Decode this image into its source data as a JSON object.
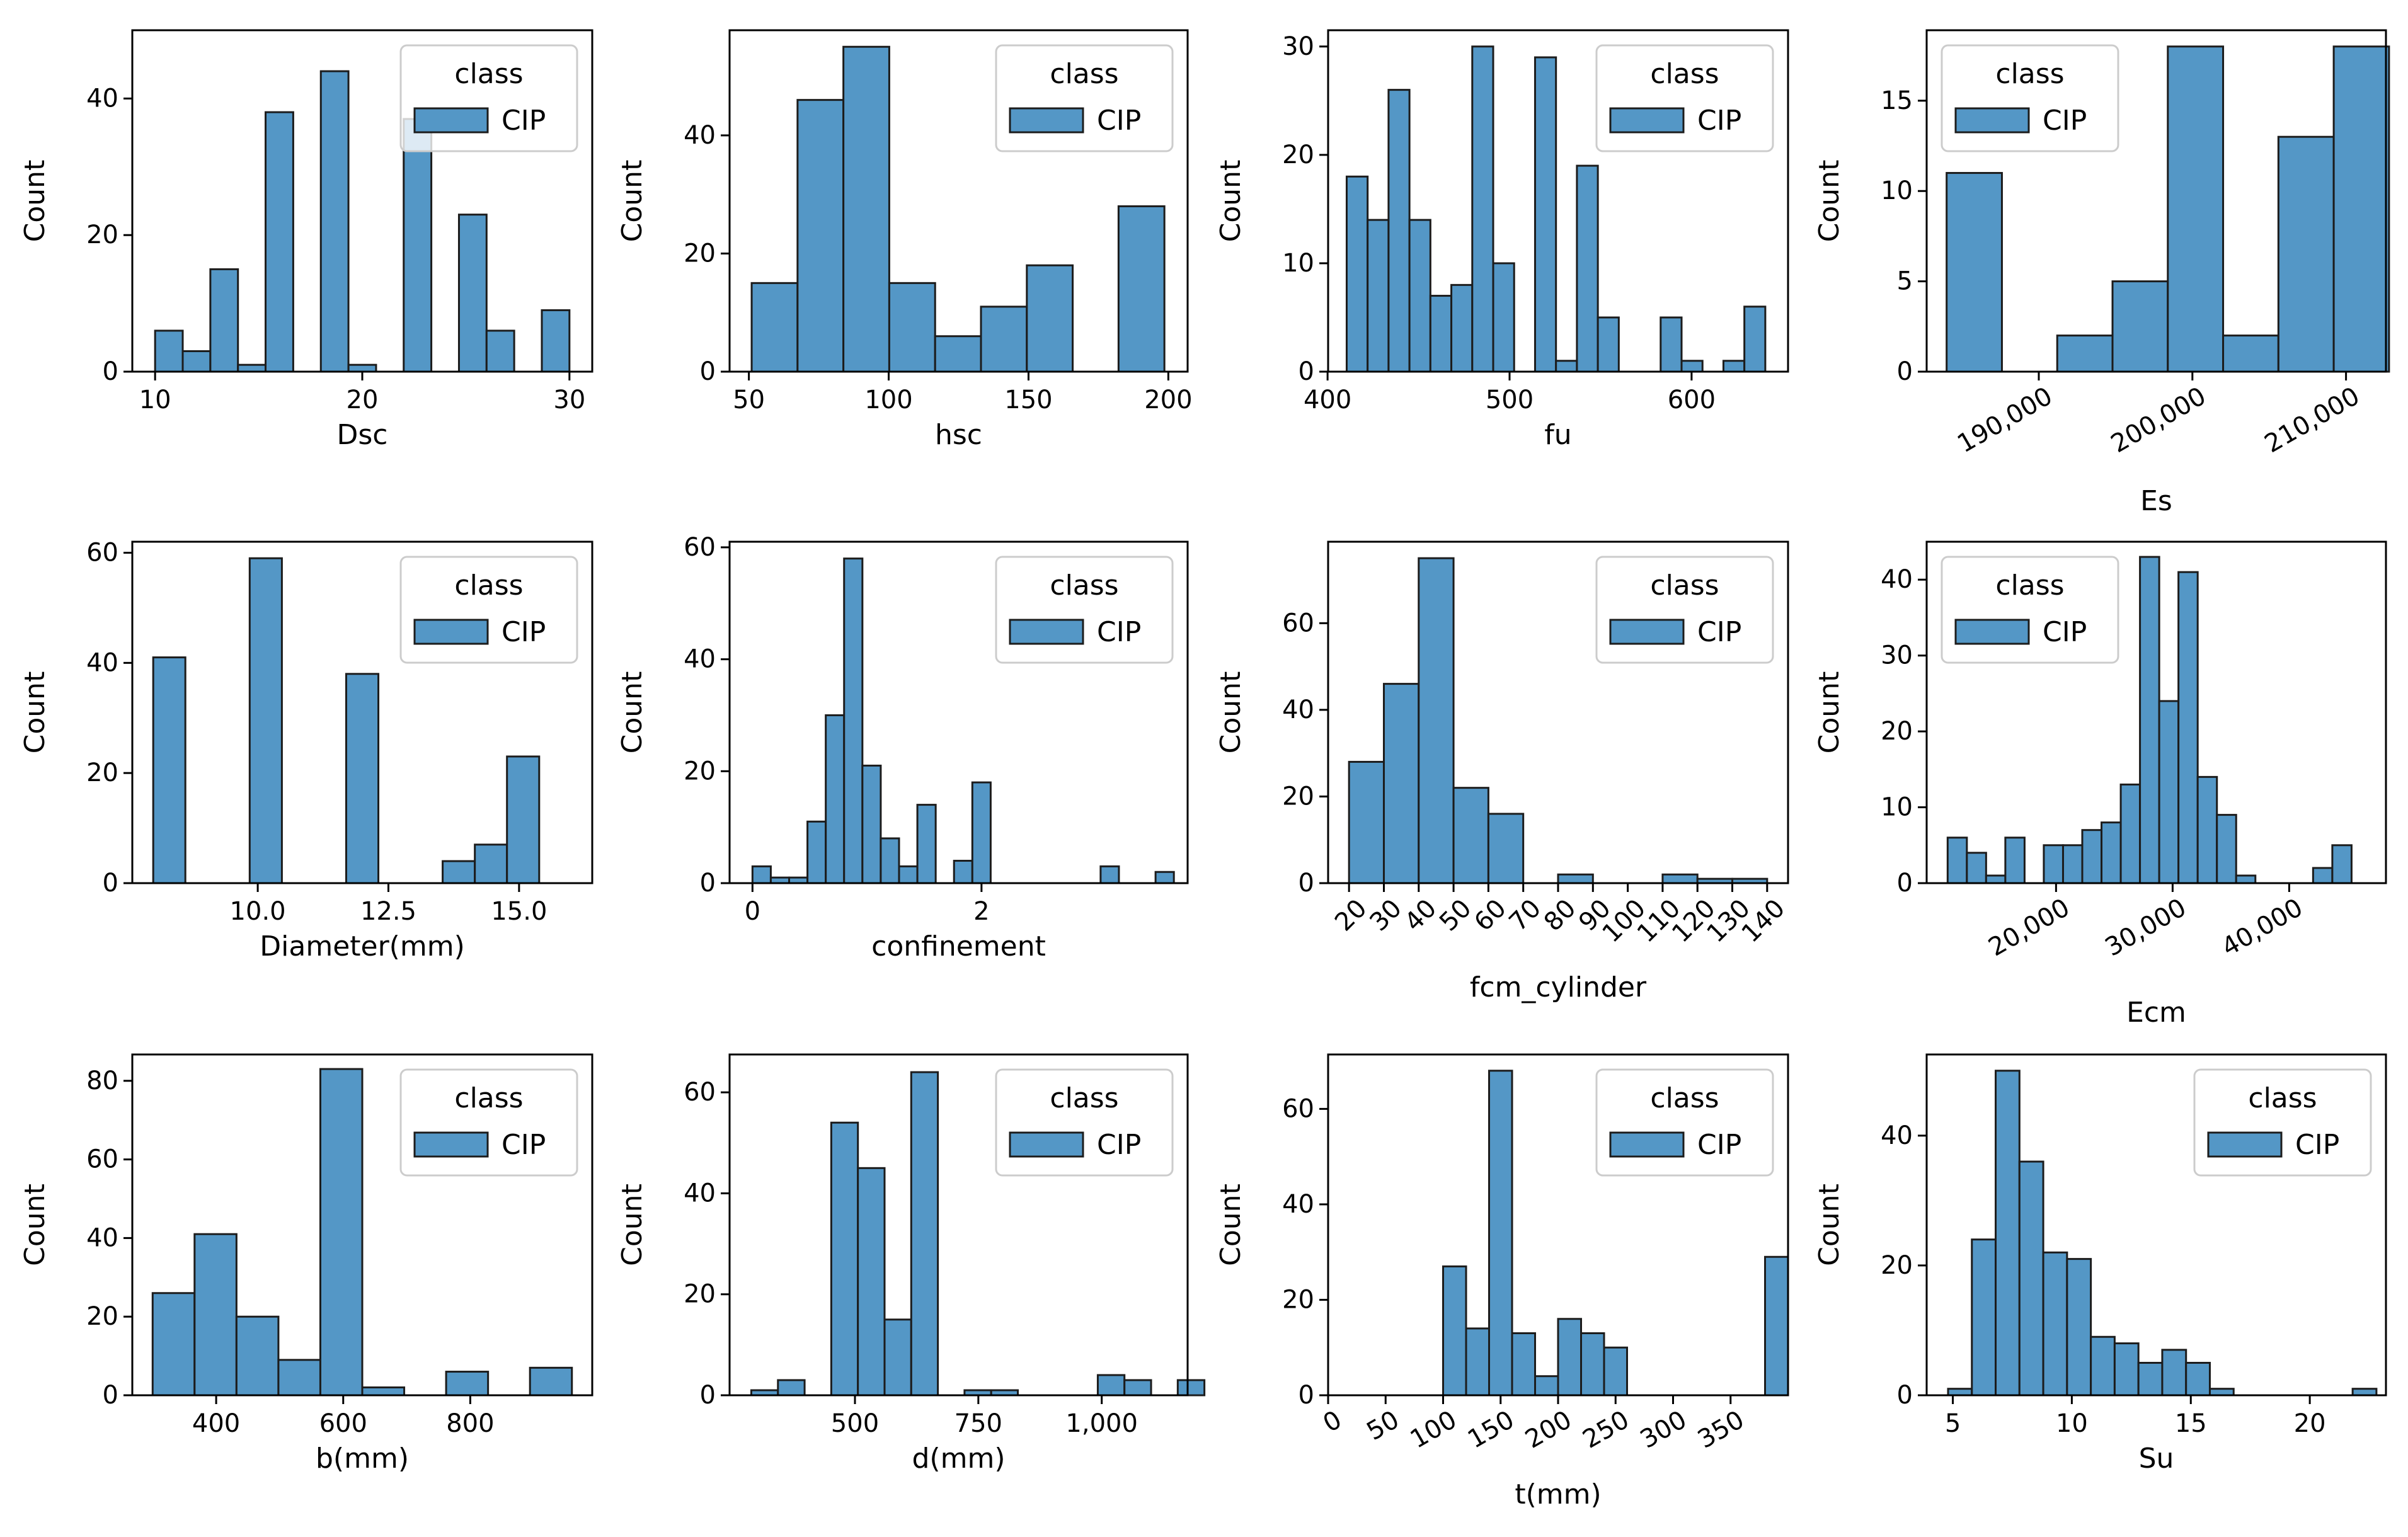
{
  "style": {
    "bar_fill": "#5497c6",
    "bar_edge": "#1c1c1c"
  },
  "chart_data": [
    {
      "type": "bar",
      "xlabel": "Dsc",
      "ylabel": "Count",
      "xlim": [
        8.9,
        31.1
      ],
      "ylim": [
        0,
        50
      ],
      "xticks": [
        10,
        20,
        30
      ],
      "xtick_labels": [
        "10",
        "20",
        "30"
      ],
      "xtick_rot": 0,
      "yticks": [
        0,
        20,
        40
      ],
      "ytick_labels": [
        "0",
        "20",
        "40"
      ],
      "legend": {
        "title": "class",
        "label": "CIP",
        "position": "top-right"
      },
      "bars": [
        [
          10.0,
          11.333,
          6
        ],
        [
          11.333,
          12.667,
          3
        ],
        [
          12.667,
          14.0,
          15
        ],
        [
          14.0,
          15.333,
          1
        ],
        [
          15.333,
          16.667,
          38
        ],
        [
          18.0,
          19.333,
          44
        ],
        [
          19.333,
          20.667,
          1
        ],
        [
          22.0,
          23.333,
          37
        ],
        [
          24.667,
          26.0,
          23
        ],
        [
          26.0,
          27.333,
          6
        ],
        [
          28.667,
          30.0,
          9
        ]
      ]
    },
    {
      "type": "bar",
      "xlabel": "hsc",
      "ylabel": "Count",
      "xlim": [
        43.1,
        206.9
      ],
      "ylim": [
        0,
        57.8
      ],
      "xticks": [
        50,
        100,
        150,
        200
      ],
      "xtick_labels": [
        "50",
        "100",
        "150",
        "200"
      ],
      "xtick_rot": 0,
      "yticks": [
        0,
        20,
        40
      ],
      "ytick_labels": [
        "0",
        "20",
        "40"
      ],
      "legend": {
        "title": "class",
        "label": "CIP",
        "position": "top-right"
      },
      "bars": [
        [
          51.0,
          67.4,
          15
        ],
        [
          67.4,
          83.8,
          46
        ],
        [
          83.8,
          100.2,
          55
        ],
        [
          100.2,
          116.6,
          15
        ],
        [
          116.6,
          133.0,
          6
        ],
        [
          133.0,
          149.4,
          11
        ],
        [
          149.4,
          165.8,
          18
        ],
        [
          182.2,
          198.6,
          28
        ]
      ]
    },
    {
      "type": "bar",
      "xlabel": "fu",
      "ylabel": "Count",
      "xlim": [
        400.3,
        653
      ],
      "ylim": [
        0,
        31.5
      ],
      "xticks": [
        400,
        500,
        600
      ],
      "xtick_labels": [
        "400",
        "500",
        "600"
      ],
      "xtick_rot": 0,
      "yticks": [
        0,
        10,
        20,
        30
      ],
      "ytick_labels": [
        "0",
        "10",
        "20",
        "30"
      ],
      "legend": {
        "title": "class",
        "label": "CIP",
        "position": "top-right"
      },
      "bars": [
        [
          410.5,
          422.0,
          18
        ],
        [
          422.0,
          433.5,
          14
        ],
        [
          433.5,
          445.0,
          26
        ],
        [
          445.0,
          456.5,
          14
        ],
        [
          456.5,
          468.0,
          7
        ],
        [
          468.0,
          479.5,
          8
        ],
        [
          479.5,
          491.0,
          30
        ],
        [
          491.0,
          502.5,
          10
        ],
        [
          514.0,
          525.5,
          29
        ],
        [
          525.5,
          537.0,
          1
        ],
        [
          537.0,
          548.5,
          19
        ],
        [
          548.5,
          560.0,
          5
        ],
        [
          583.0,
          594.5,
          5
        ],
        [
          594.5,
          606.0,
          1
        ],
        [
          617.5,
          629.0,
          1
        ],
        [
          629.0,
          640.5,
          6
        ]
      ]
    },
    {
      "type": "bar",
      "xlabel": "Es",
      "ylabel": "Count",
      "xlim": [
        182700,
        212600
      ],
      "ylim": [
        0,
        18.9
      ],
      "xticks": [
        190000,
        200000,
        210000
      ],
      "xtick_labels": [
        "190,000",
        "200,000",
        "210,000"
      ],
      "xtick_rot": -30,
      "yticks": [
        0,
        5,
        10,
        15
      ],
      "ytick_labels": [
        "0",
        "5",
        "10",
        "15"
      ],
      "legend": {
        "title": "class",
        "label": "CIP",
        "position": "top-left"
      },
      "bars": [
        [
          184000,
          187600,
          11
        ],
        [
          191200,
          194800,
          2
        ],
        [
          194800,
          198400,
          5
        ],
        [
          198400,
          202000,
          18
        ],
        [
          202000,
          205600,
          2
        ],
        [
          205600,
          209200,
          13
        ],
        [
          209200,
          212800,
          18
        ]
      ]
    },
    {
      "type": "bar",
      "xlabel": "Diameter(mm)",
      "ylabel": "Count",
      "xlim": [
        7.6,
        16.4
      ],
      "ylim": [
        0,
        62
      ],
      "xticks": [
        10,
        12.5,
        15
      ],
      "xtick_labels": [
        "10.0",
        "12.5",
        "15.0"
      ],
      "xtick_rot": 0,
      "yticks": [
        0,
        20,
        40,
        60
      ],
      "ytick_labels": [
        "0",
        "20",
        "40",
        "60"
      ],
      "legend": {
        "title": "class",
        "label": "CIP",
        "position": "top-right"
      },
      "bars": [
        [
          8.0,
          8.615,
          41
        ],
        [
          9.846,
          10.462,
          59
        ],
        [
          11.692,
          12.308,
          38
        ],
        [
          13.538,
          14.154,
          4
        ],
        [
          14.154,
          14.769,
          7
        ],
        [
          14.769,
          15.385,
          23
        ]
      ]
    },
    {
      "type": "bar",
      "xlabel": "confinement",
      "ylabel": "Count",
      "xlim": [
        -0.2,
        3.8
      ],
      "ylim": [
        0,
        61
      ],
      "xticks": [
        0,
        2
      ],
      "xtick_labels": [
        "0",
        "2"
      ],
      "xtick_rot": 0,
      "yticks": [
        0,
        20,
        40,
        60
      ],
      "ytick_labels": [
        "0",
        "20",
        "40",
        "60"
      ],
      "legend": {
        "title": "class",
        "label": "CIP",
        "position": "top-right"
      },
      "bars": [
        [
          0.0,
          0.16,
          3
        ],
        [
          0.16,
          0.32,
          1
        ],
        [
          0.32,
          0.48,
          1
        ],
        [
          0.48,
          0.64,
          11
        ],
        [
          0.64,
          0.8,
          30
        ],
        [
          0.8,
          0.96,
          58
        ],
        [
          0.96,
          1.12,
          21
        ],
        [
          1.12,
          1.28,
          8
        ],
        [
          1.28,
          1.44,
          3
        ],
        [
          1.44,
          1.6,
          14
        ],
        [
          1.76,
          1.92,
          4
        ],
        [
          1.92,
          2.08,
          18
        ],
        [
          3.04,
          3.2,
          3
        ],
        [
          3.52,
          3.68,
          2
        ]
      ]
    },
    {
      "type": "bar",
      "xlabel": "fcm_cylinder",
      "ylabel": "Count",
      "xlim": [
        14,
        146
      ],
      "ylim": [
        0,
        78.8
      ],
      "xticks": [
        20,
        30,
        40,
        50,
        60,
        70,
        80,
        90,
        100,
        110,
        120,
        130,
        140
      ],
      "xtick_labels": [
        "20",
        "30",
        "40",
        "50",
        "60",
        "70",
        "80",
        "90",
        "100",
        "110",
        "120",
        "130",
        "140"
      ],
      "xtick_rot": -45,
      "yticks": [
        0,
        20,
        40,
        60
      ],
      "ytick_labels": [
        "0",
        "20",
        "40",
        "60"
      ],
      "legend": {
        "title": "class",
        "label": "CIP",
        "position": "top-right"
      },
      "bars": [
        [
          20,
          30,
          28
        ],
        [
          30,
          40,
          46
        ],
        [
          40,
          50,
          75
        ],
        [
          50,
          60,
          22
        ],
        [
          60,
          70,
          16
        ],
        [
          80,
          90,
          2
        ],
        [
          110,
          120,
          2
        ],
        [
          120,
          130,
          1
        ],
        [
          130,
          140,
          1
        ]
      ]
    },
    {
      "type": "bar",
      "xlabel": "Ecm",
      "ylabel": "Count",
      "xlim": [
        8900,
        48300
      ],
      "ylim": [
        0,
        45
      ],
      "xticks": [
        20000,
        30000,
        40000
      ],
      "xtick_labels": [
        "20,000",
        "30,000",
        "40,000"
      ],
      "xtick_rot": -30,
      "yticks": [
        0,
        10,
        20,
        30,
        40
      ],
      "ytick_labels": [
        "0",
        "10",
        "20",
        "30",
        "40"
      ],
      "legend": {
        "title": "class",
        "label": "CIP",
        "position": "top-left"
      },
      "bars": [
        [
          10700,
          12350,
          6
        ],
        [
          12350,
          14000,
          4
        ],
        [
          14000,
          15650,
          1
        ],
        [
          15650,
          17300,
          6
        ],
        [
          18950,
          20600,
          5
        ],
        [
          20600,
          22250,
          5
        ],
        [
          22250,
          23900,
          7
        ],
        [
          23900,
          25550,
          8
        ],
        [
          25550,
          27200,
          13
        ],
        [
          27200,
          28850,
          43
        ],
        [
          28850,
          30500,
          24
        ],
        [
          30500,
          32150,
          41
        ],
        [
          32150,
          33800,
          14
        ],
        [
          33800,
          35450,
          9
        ],
        [
          35450,
          37100,
          1
        ],
        [
          42050,
          43700,
          2
        ],
        [
          43700,
          45350,
          5
        ]
      ]
    },
    {
      "type": "bar",
      "xlabel": "b(mm)",
      "ylabel": "Count",
      "xlim": [
        268,
        992
      ],
      "ylim": [
        0,
        86.7
      ],
      "xticks": [
        400,
        600,
        800
      ],
      "xtick_labels": [
        "400",
        "600",
        "800"
      ],
      "xtick_rot": 0,
      "yticks": [
        0,
        20,
        40,
        60,
        80
      ],
      "ytick_labels": [
        "0",
        "20",
        "40",
        "60",
        "80"
      ],
      "legend": {
        "title": "class",
        "label": "CIP",
        "position": "top-right"
      },
      "bars": [
        [
          300,
          366,
          26
        ],
        [
          366,
          432,
          41
        ],
        [
          432,
          498,
          20
        ],
        [
          498,
          564,
          9
        ],
        [
          564,
          630,
          83
        ],
        [
          630,
          696,
          2
        ],
        [
          762,
          828,
          6
        ],
        [
          894,
          960,
          7
        ]
      ]
    },
    {
      "type": "bar",
      "xlabel": "d(mm)",
      "ylabel": "Count",
      "xlim": [
        246,
        1174
      ],
      "ylim": [
        0,
        67.5
      ],
      "xticks": [
        500,
        750,
        1000
      ],
      "xtick_labels": [
        "500",
        "750",
        "1,000"
      ],
      "xtick_rot": 0,
      "yticks": [
        0,
        20,
        40,
        60
      ],
      "ytick_labels": [
        "0",
        "20",
        "40",
        "60"
      ],
      "legend": {
        "title": "class",
        "label": "CIP",
        "position": "top-right"
      },
      "bars": [
        [
          290,
          344,
          1
        ],
        [
          344,
          398,
          3
        ],
        [
          452,
          506,
          54
        ],
        [
          506,
          560,
          45
        ],
        [
          560,
          614,
          15
        ],
        [
          614,
          668,
          64
        ],
        [
          722,
          776,
          1
        ],
        [
          776,
          830,
          1
        ],
        [
          992,
          1046,
          4
        ],
        [
          1046,
          1100,
          3
        ],
        [
          1154,
          1208,
          3
        ]
      ]
    },
    {
      "type": "bar",
      "xlabel": "t(mm)",
      "ylabel": "Count",
      "xlim": [
        0,
        400
      ],
      "ylim": [
        0,
        71.4
      ],
      "xticks": [
        0,
        50,
        100,
        150,
        200,
        250,
        300,
        350
      ],
      "xtick_labels": [
        "0",
        "50",
        "100",
        "150",
        "200",
        "250",
        "300",
        "350"
      ],
      "xtick_rot": -30,
      "yticks": [
        0,
        20,
        40,
        60
      ],
      "ytick_labels": [
        "0",
        "20",
        "40",
        "60"
      ],
      "legend": {
        "title": "class",
        "label": "CIP",
        "position": "top-right"
      },
      "bars": [
        [
          100,
          120,
          27
        ],
        [
          120,
          140,
          14
        ],
        [
          140,
          160,
          68
        ],
        [
          160,
          180,
          13
        ],
        [
          180,
          200,
          4
        ],
        [
          200,
          220,
          16
        ],
        [
          220,
          240,
          13
        ],
        [
          240,
          260,
          10
        ],
        [
          380,
          400,
          29
        ]
      ]
    },
    {
      "type": "bar",
      "xlabel": "Su",
      "ylabel": "Count",
      "xlim": [
        3.9,
        23.2
      ],
      "ylim": [
        0,
        52.5
      ],
      "xticks": [
        5,
        10,
        15,
        20
      ],
      "xtick_labels": [
        "5",
        "10",
        "15",
        "20"
      ],
      "xtick_rot": 0,
      "yticks": [
        0,
        20,
        40
      ],
      "ytick_labels": [
        "0",
        "20",
        "40"
      ],
      "legend": {
        "title": "class",
        "label": "CIP",
        "position": "top-right"
      },
      "bars": [
        [
          4.8,
          5.8,
          1
        ],
        [
          5.8,
          6.8,
          24
        ],
        [
          6.8,
          7.8,
          50
        ],
        [
          7.8,
          8.8,
          36
        ],
        [
          8.8,
          9.8,
          22
        ],
        [
          9.8,
          10.8,
          21
        ],
        [
          10.8,
          11.8,
          9
        ],
        [
          11.8,
          12.8,
          8
        ],
        [
          12.8,
          13.8,
          5
        ],
        [
          13.8,
          14.8,
          7
        ],
        [
          14.8,
          15.8,
          5
        ],
        [
          15.8,
          16.8,
          1
        ],
        [
          21.8,
          22.8,
          1
        ]
      ]
    }
  ]
}
